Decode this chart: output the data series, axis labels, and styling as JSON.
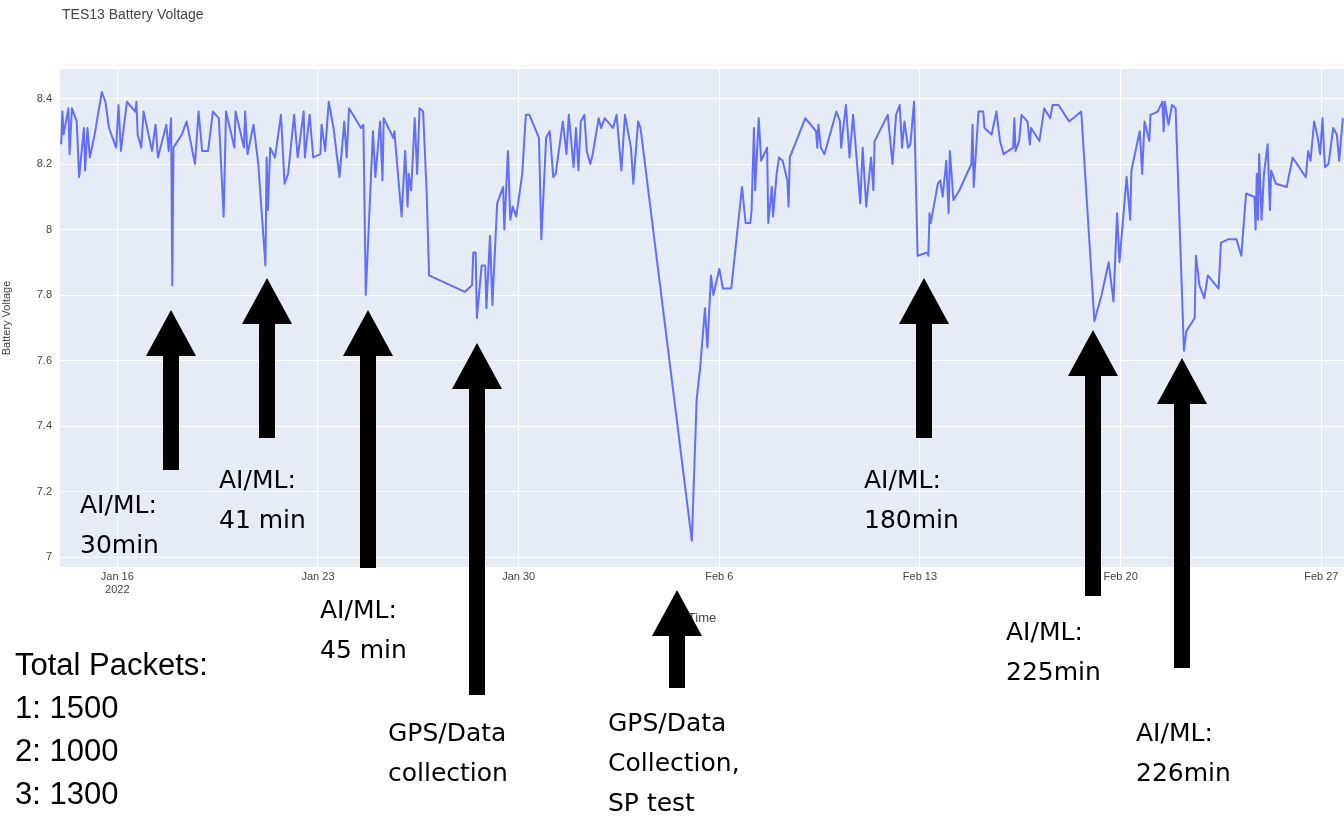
{
  "chart_data": {
    "type": "line",
    "title": "TES13 Battery Voltage",
    "xlabel": "Time",
    "ylabel": "Battery Voltage",
    "color": "#636efa",
    "marker": "none",
    "grid": true,
    "legend": false,
    "xlim": [
      "2022-01-14T00:00",
      "2022-02-27T19:00"
    ],
    "xticks": [
      {
        "value": "2022-01-16",
        "label": "Jan 16\n2022"
      },
      {
        "value": "2022-01-23",
        "label": "Jan 23"
      },
      {
        "value": "2022-01-30",
        "label": "Jan 30"
      },
      {
        "value": "2022-02-06",
        "label": "Feb 6"
      },
      {
        "value": "2022-02-13",
        "label": "Feb 13"
      },
      {
        "value": "2022-02-20",
        "label": "Feb 20"
      },
      {
        "value": "2022-02-27",
        "label": "Feb 27"
      }
    ],
    "ylim": [
      6.97,
      8.49
    ],
    "yticks": [
      7,
      7.2,
      7.4,
      7.6,
      7.8,
      8,
      8.2,
      8.4
    ],
    "x": [
      "2022-01-14T01:00",
      "2022-01-14T02:00",
      "2022-01-14T03:00",
      "2022-01-14T07:00",
      "2022-01-14T08:00",
      "2022-01-14T10:00",
      "2022-01-14T14:00",
      "2022-01-14T16:00",
      "2022-01-14T20:00",
      "2022-01-14T21:00",
      "2022-01-14T23:00",
      "2022-01-15T01:00",
      "2022-01-15T05:00",
      "2022-01-15T11:00",
      "2022-01-15T14:00",
      "2022-01-15T17:00",
      "2022-01-15T23:00",
      "2022-01-16T01:00",
      "2022-01-16T03:00",
      "2022-01-16T08:00",
      "2022-01-16T15:00",
      "2022-01-16T16:00",
      "2022-01-16T17:00",
      "2022-01-16T20:00",
      "2022-01-16T22:00",
      "2022-01-17T05:00",
      "2022-01-17T08:00",
      "2022-01-17T10:00",
      "2022-01-17T17:00",
      "2022-01-17T19:00",
      "2022-01-17T21:00",
      "2022-01-17T22:00",
      "2022-01-17T23:00",
      "2022-01-18T06:00",
      "2022-01-18T10:00",
      "2022-01-18T17:00",
      "2022-01-18T20:00",
      "2022-01-18T23:00",
      "2022-01-19T04:00",
      "2022-01-19T08:00",
      "2022-01-19T13:00",
      "2022-01-19T17:00",
      "2022-01-19T19:00",
      "2022-01-20T02:00",
      "2022-01-20T03:00",
      "2022-01-20T10:00",
      "2022-01-20T11:00",
      "2022-01-20T13:00",
      "2022-01-20T18:00",
      "2022-01-20T22:00",
      "2022-01-21T04:00",
      "2022-01-21T05:00",
      "2022-01-21T06:00",
      "2022-01-21T08:00",
      "2022-01-21T12:00",
      "2022-01-21T17:00",
      "2022-01-21T20:00",
      "2022-01-21T23:00",
      "2022-01-22T04:00",
      "2022-01-22T07:00",
      "2022-01-22T12:00",
      "2022-01-22T13:00",
      "2022-01-22T17:00",
      "2022-01-22T20:00",
      "2022-01-23T02:00",
      "2022-01-23T03:00",
      "2022-01-23T06:00",
      "2022-01-23T09:00",
      "2022-01-23T13:00",
      "2022-01-23T18:00",
      "2022-01-23T22:00",
      "2022-01-24T00:00",
      "2022-01-24T02:00",
      "2022-01-24T12:00",
      "2022-01-24T14:00",
      "2022-01-24T16:00",
      "2022-01-24T22:00",
      "2022-01-25T00:00",
      "2022-01-25T04:00",
      "2022-01-25T06:00",
      "2022-01-25T07:00",
      "2022-01-25T15:00",
      "2022-01-25T16:00",
      "2022-01-25T18:00",
      "2022-01-25T22:00",
      "2022-01-26T01:00",
      "2022-01-26T03:00",
      "2022-01-26T04:00",
      "2022-01-26T06:00",
      "2022-01-26T09:00",
      "2022-01-26T11:00",
      "2022-01-26T13:00",
      "2022-01-26T16:00",
      "2022-01-26T19:00",
      "2022-01-26T21:00",
      "2022-01-28T03:00",
      "2022-01-28T09:00",
      "2022-01-28T10:00",
      "2022-01-28T12:00",
      "2022-01-28T13:00",
      "2022-01-28T17:00",
      "2022-01-28T20:00",
      "2022-01-28T21:00",
      "2022-01-29T00:00",
      "2022-01-29T02:00",
      "2022-01-29T06:00",
      "2022-01-29T11:00",
      "2022-01-29T12:00",
      "2022-01-29T15:00",
      "2022-01-29T17:00",
      "2022-01-29T19:00",
      "2022-01-29T22:00",
      "2022-01-30T03:00",
      "2022-01-30T06:00",
      "2022-01-30T09:00",
      "2022-01-30T17:00",
      "2022-01-30T19:00",
      "2022-01-30T23:00",
      "2022-01-31T02:00",
      "2022-01-31T05:00",
      "2022-01-31T07:00",
      "2022-01-31T13:00",
      "2022-01-31T16:00",
      "2022-01-31T18:00",
      "2022-01-31T22:00",
      "2022-02-01T00:00",
      "2022-02-01T02:00",
      "2022-02-01T04:00",
      "2022-02-01T07:00",
      "2022-02-01T09:00",
      "2022-02-01T12:00",
      "2022-02-01T14:00",
      "2022-02-01T19:00",
      "2022-02-01T21:00",
      "2022-02-02T00:00",
      "2022-02-02T07:00",
      "2022-02-02T10:00",
      "2022-02-02T14:00",
      "2022-02-02T17:00",
      "2022-02-02T22:00",
      "2022-02-03T00:00",
      "2022-02-03T04:00",
      "2022-02-03T06:00",
      "2022-02-05T01:00",
      "2022-02-05T05:00",
      "2022-02-05T08:00",
      "2022-02-05T12:00",
      "2022-02-05T14:00",
      "2022-02-05T17:00",
      "2022-02-05T19:00",
      "2022-02-06T00:00",
      "2022-02-06T03:00",
      "2022-02-06T10:00",
      "2022-02-06T19:00",
      "2022-02-06T22:00",
      "2022-02-07T02:00",
      "2022-02-07T03:00",
      "2022-02-07T05:00",
      "2022-02-07T06:00",
      "2022-02-07T09:00",
      "2022-02-07T11:00",
      "2022-02-07T16:00",
      "2022-02-07T17:00",
      "2022-02-07T20:00",
      "2022-02-07T21:00",
      "2022-02-08T00:00",
      "2022-02-08T02:00",
      "2022-02-08T05:00",
      "2022-02-08T09:00",
      "2022-02-08T10:00",
      "2022-02-08T11:00",
      "2022-02-09T00:00",
      "2022-02-09T09:00",
      "2022-02-09T10:00",
      "2022-02-09T11:00",
      "2022-02-09T13:00",
      "2022-02-09T16:00",
      "2022-02-10T02:00",
      "2022-02-10T05:00",
      "2022-02-10T06:00",
      "2022-02-10T10:00",
      "2022-02-10T13:00",
      "2022-02-10T16:00",
      "2022-02-10T22:00",
      "2022-02-11T00:00",
      "2022-02-11T03:00",
      "2022-02-11T07:00",
      "2022-02-11T09:00",
      "2022-02-11T10:00",
      "2022-02-11T21:00",
      "2022-02-12T01:00",
      "2022-02-12T04:00",
      "2022-02-12T07:00",
      "2022-02-12T09:00",
      "2022-02-12T11:00",
      "2022-02-12T14:00",
      "2022-02-12T16:00",
      "2022-02-12T19:00",
      "2022-02-12T22:00",
      "2022-02-13T06:00",
      "2022-02-13T07:00",
      "2022-02-13T08:00",
      "2022-02-13T09:00",
      "2022-02-13T15:00",
      "2022-02-13T17:00",
      "2022-02-13T19:00",
      "2022-02-13T22:00",
      "2022-02-14T00:00",
      "2022-02-14T01:00",
      "2022-02-14T04:00",
      "2022-02-14T09:00",
      "2022-02-14T19:00",
      "2022-02-14T20:00",
      "2022-02-14T21:00",
      "2022-02-15T01:00",
      "2022-02-15T05:00",
      "2022-02-15T06:00",
      "2022-02-15T12:00",
      "2022-02-15T16:00",
      "2022-02-15T19:00",
      "2022-02-15T22:00",
      "2022-02-16T06:00",
      "2022-02-16T07:00",
      "2022-02-16T08:00",
      "2022-02-16T11:00",
      "2022-02-16T13:00",
      "2022-02-16T18:00",
      "2022-02-16T20:00",
      "2022-02-16T21:00",
      "2022-02-17T04:00",
      "2022-02-17T08:00",
      "2022-02-17T13:00",
      "2022-02-17T15:00",
      "2022-02-17T20:00",
      "2022-02-18T03:00",
      "2022-02-18T05:00",
      "2022-02-18T15:00",
      "2022-02-19T02:00",
      "2022-02-19T08:00",
      "2022-02-19T14:00",
      "2022-02-19T18:00",
      "2022-02-19T21:00",
      "2022-02-19T23:00",
      "2022-02-20T05:00",
      "2022-02-20T08:00",
      "2022-02-20T09:00",
      "2022-02-20T16:00",
      "2022-02-20T18:00",
      "2022-02-20T20:00",
      "2022-02-21T00:00",
      "2022-02-21T01:00",
      "2022-02-21T07:00",
      "2022-02-21T11:00",
      "2022-02-21T12:00",
      "2022-02-21T13:00",
      "2022-02-21T16:00",
      "2022-02-21T19:00",
      "2022-02-21T22:00",
      "2022-02-22T05:00",
      "2022-02-22T07:00",
      "2022-02-22T14:00",
      "2022-02-22T15:00",
      "2022-02-22T18:00",
      "2022-02-22T22:00",
      "2022-02-23T01:00",
      "2022-02-23T10:00",
      "2022-02-23T12:00",
      "2022-02-23T18:00",
      "2022-02-24T01:00",
      "2022-02-24T05:00",
      "2022-02-24T09:00",
      "2022-02-24T16:00",
      "2022-02-24T17:00",
      "2022-02-24T18:00",
      "2022-02-24T19:00",
      "2022-02-24T20:00",
      "2022-02-24T22:00",
      "2022-02-25T00:00",
      "2022-02-25T03:00",
      "2022-02-25T05:00",
      "2022-02-25T06:00",
      "2022-02-25T10:00",
      "2022-02-25T19:00",
      "2022-02-26T00:00",
      "2022-02-26T11:00",
      "2022-02-26T13:00",
      "2022-02-26T15:00",
      "2022-02-26T18:00",
      "2022-02-26T21:00",
      "2022-02-26T23:00",
      "2022-02-27T01:00",
      "2022-02-27T03:00",
      "2022-02-27T06:00",
      "2022-02-27T10:00",
      "2022-02-27T13:00",
      "2022-02-27T15:00",
      "2022-02-27T18:00"
    ],
    "values": [
      8.26,
      8.36,
      8.29,
      8.37,
      8.23,
      8.37,
      8.33,
      8.16,
      8.31,
      8.18,
      8.31,
      8.22,
      8.29,
      8.42,
      8.39,
      8.31,
      8.25,
      8.38,
      8.24,
      8.39,
      8.36,
      8.39,
      8.29,
      8.25,
      8.36,
      8.24,
      8.32,
      8.22,
      8.32,
      8.24,
      8.34,
      7.83,
      8.25,
      8.29,
      8.33,
      8.2,
      8.36,
      8.24,
      8.24,
      8.36,
      8.34,
      8.04,
      8.36,
      8.25,
      8.36,
      8.25,
      8.36,
      8.23,
      8.32,
      8.2,
      7.89,
      8.22,
      8.06,
      8.25,
      8.22,
      8.35,
      8.14,
      8.17,
      8.35,
      8.22,
      8.36,
      8.22,
      8.35,
      8.22,
      8.23,
      8.32,
      8.24,
      8.39,
      8.31,
      8.16,
      8.33,
      8.22,
      8.37,
      8.31,
      8.32,
      7.8,
      8.3,
      8.16,
      8.33,
      8.15,
      8.34,
      8.28,
      8.3,
      8.21,
      8.04,
      8.24,
      8.07,
      8.17,
      8.12,
      8.34,
      8.17,
      8.37,
      8.36,
      8.11,
      7.86,
      7.81,
      7.83,
      7.93,
      7.93,
      7.73,
      7.89,
      7.89,
      7.76,
      7.98,
      7.77,
      8.08,
      8.13,
      8,
      8.24,
      8.03,
      8.07,
      8.04,
      8.17,
      8.35,
      8.35,
      8.28,
      7.97,
      8.28,
      8.3,
      8.16,
      8.17,
      8.33,
      8.23,
      8.35,
      8.19,
      8.31,
      8.18,
      8.33,
      8.35,
      8.24,
      8.2,
      8.23,
      8.34,
      8.31,
      8.34,
      8.31,
      8.35,
      8.18,
      8.35,
      8.25,
      8.14,
      8.33,
      8.31,
      7.05,
      7.48,
      7.58,
      7.76,
      7.64,
      7.86,
      7.8,
      7.88,
      7.82,
      7.82,
      8.13,
      8.02,
      8.02,
      8.06,
      8.31,
      8.12,
      8.34,
      8.21,
      8.25,
      8.02,
      8.13,
      8.04,
      8.17,
      8.22,
      8.21,
      8.15,
      8.07,
      8.22,
      8.34,
      8.3,
      8.25,
      8.32,
      8.25,
      8.23,
      8.36,
      8.33,
      8.25,
      8.38,
      8.22,
      8.35,
      8.08,
      8.25,
      8.07,
      8.22,
      8.12,
      8.27,
      8.35,
      8.2,
      8.35,
      8.38,
      8.25,
      8.33,
      8.25,
      8.26,
      8.39,
      7.92,
      7.93,
      7.92,
      8.05,
      8.02,
      8.14,
      8.15,
      8.1,
      8.21,
      8.05,
      8.24,
      8.09,
      8.12,
      8.2,
      8.32,
      8.13,
      8.36,
      8.36,
      8.31,
      8.29,
      8.36,
      8.27,
      8.23,
      8.25,
      8.34,
      8.24,
      8.27,
      8.35,
      8.33,
      8.26,
      8.31,
      8.27,
      8.37,
      8.34,
      8.38,
      8.38,
      8.34,
      8.33,
      8.36,
      7.72,
      7.8,
      7.9,
      7.78,
      8.05,
      7.9,
      8.16,
      8.03,
      8.18,
      8.3,
      8.17,
      8.33,
      8.27,
      8.35,
      8.36,
      8.39,
      8.3,
      8.39,
      8.32,
      8.38,
      8.37,
      7.63,
      7.69,
      7.73,
      7.92,
      7.83,
      7.79,
      7.86,
      7.82,
      7.96,
      7.97,
      7.97,
      7.92,
      8.11,
      8.1,
      8,
      8.17,
      8.03,
      8.23,
      8.03,
      8.17,
      8.26,
      8.06,
      8.18,
      8.14,
      8.13,
      8.22,
      8.16,
      8.24,
      8.21,
      8.33,
      8.28,
      8.23,
      8.34,
      8.19,
      8.2,
      8.31,
      8.29,
      8.21,
      8.34
    ],
    "annotations": [
      "AI/ML:\n30min",
      "AI/ML:\n41 min",
      "AI/ML:\n45 min",
      "GPS/Data\ncollection",
      "GPS/Data\nCollection,\nSP test",
      "AI/ML:\n180min",
      "AI/ML:\n225min",
      "AI/ML:\n226min",
      "Total Packets:\n1: 1500\n2: 1000\n3: 1300"
    ]
  }
}
